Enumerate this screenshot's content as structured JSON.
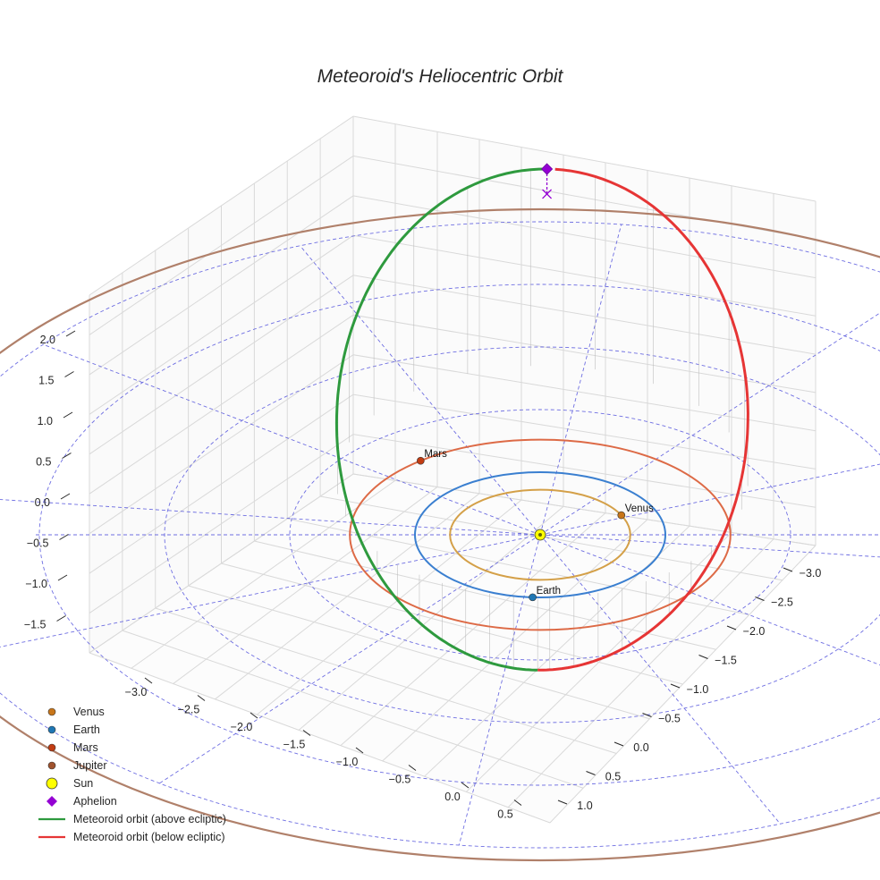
{
  "chart_data": {
    "type": "line",
    "projection": "3d",
    "title": "Meteoroid's Heliocentric Orbit",
    "x_ticks": [
      "−3.0",
      "−2.5",
      "−2.0",
      "−1.5",
      "−1.0",
      "−0.5",
      "0.0",
      "0.5"
    ],
    "y_ticks": [
      "−3.0",
      "−2.5",
      "−2.0",
      "−1.5",
      "−1.0",
      "−0.5",
      "0.0",
      "0.5",
      "1.0"
    ],
    "z_ticks": [
      "2.0",
      "1.5",
      "1.0",
      "0.5",
      "0.0",
      "−0.5",
      "−1.0",
      "−1.5"
    ],
    "xlim": [
      -3.3,
      0.8
    ],
    "ylim": [
      -3.3,
      1.3
    ],
    "zlim": [
      -1.8,
      2.2
    ],
    "ecliptic_grid": {
      "rings_au": [
        1,
        2,
        3,
        4,
        5
      ],
      "spokes": 12,
      "style": "dashed",
      "color": "#5555dd"
    },
    "planets": [
      {
        "name": "Venus",
        "a_au": 0.72,
        "label": "Venus",
        "color": "#d4a048",
        "marker_color": "#c8761a"
      },
      {
        "name": "Earth",
        "a_au": 1.0,
        "label": "Earth",
        "color": "#3a7fd0",
        "marker_color": "#1f77b4"
      },
      {
        "name": "Mars",
        "a_au": 1.52,
        "label": "Mars",
        "color": "#dd6a46",
        "marker_color": "#c23c12"
      },
      {
        "name": "Jupiter",
        "a_au": 5.2,
        "label": "",
        "color": "#b0806a",
        "marker_color": "#a0522d"
      }
    ],
    "meteoroid_orbit": {
      "semi_major_axis_au": 1.85,
      "eccentricity": 0.46,
      "perihelion_au": 1.0,
      "aphelion_au": 2.7,
      "max_height_au": 2.0,
      "segments": [
        {
          "name": "Meteoroid orbit (above ecliptic)",
          "color": "#2e9a3e"
        },
        {
          "name": "Meteoroid orbit (below ecliptic)",
          "color": "#e63535"
        }
      ]
    },
    "legend": {
      "position": "bottom-left",
      "entries": [
        {
          "label": "Venus",
          "symbol": "dot",
          "color": "#c8761a"
        },
        {
          "label": "Earth",
          "symbol": "dot",
          "color": "#1f77b4"
        },
        {
          "label": "Mars",
          "symbol": "dot",
          "color": "#c23c12"
        },
        {
          "label": "Jupiter",
          "symbol": "dot",
          "color": "#a0522d"
        },
        {
          "label": "Sun",
          "symbol": "sun",
          "color": "#ffff00"
        },
        {
          "label": "Aphelion",
          "symbol": "diamond",
          "color": "#9400d3"
        },
        {
          "label": "Meteoroid orbit (above ecliptic)",
          "symbol": "line",
          "color": "#2e9a3e"
        },
        {
          "label": "Meteoroid orbit (below ecliptic)",
          "symbol": "line",
          "color": "#e63535"
        }
      ]
    }
  }
}
